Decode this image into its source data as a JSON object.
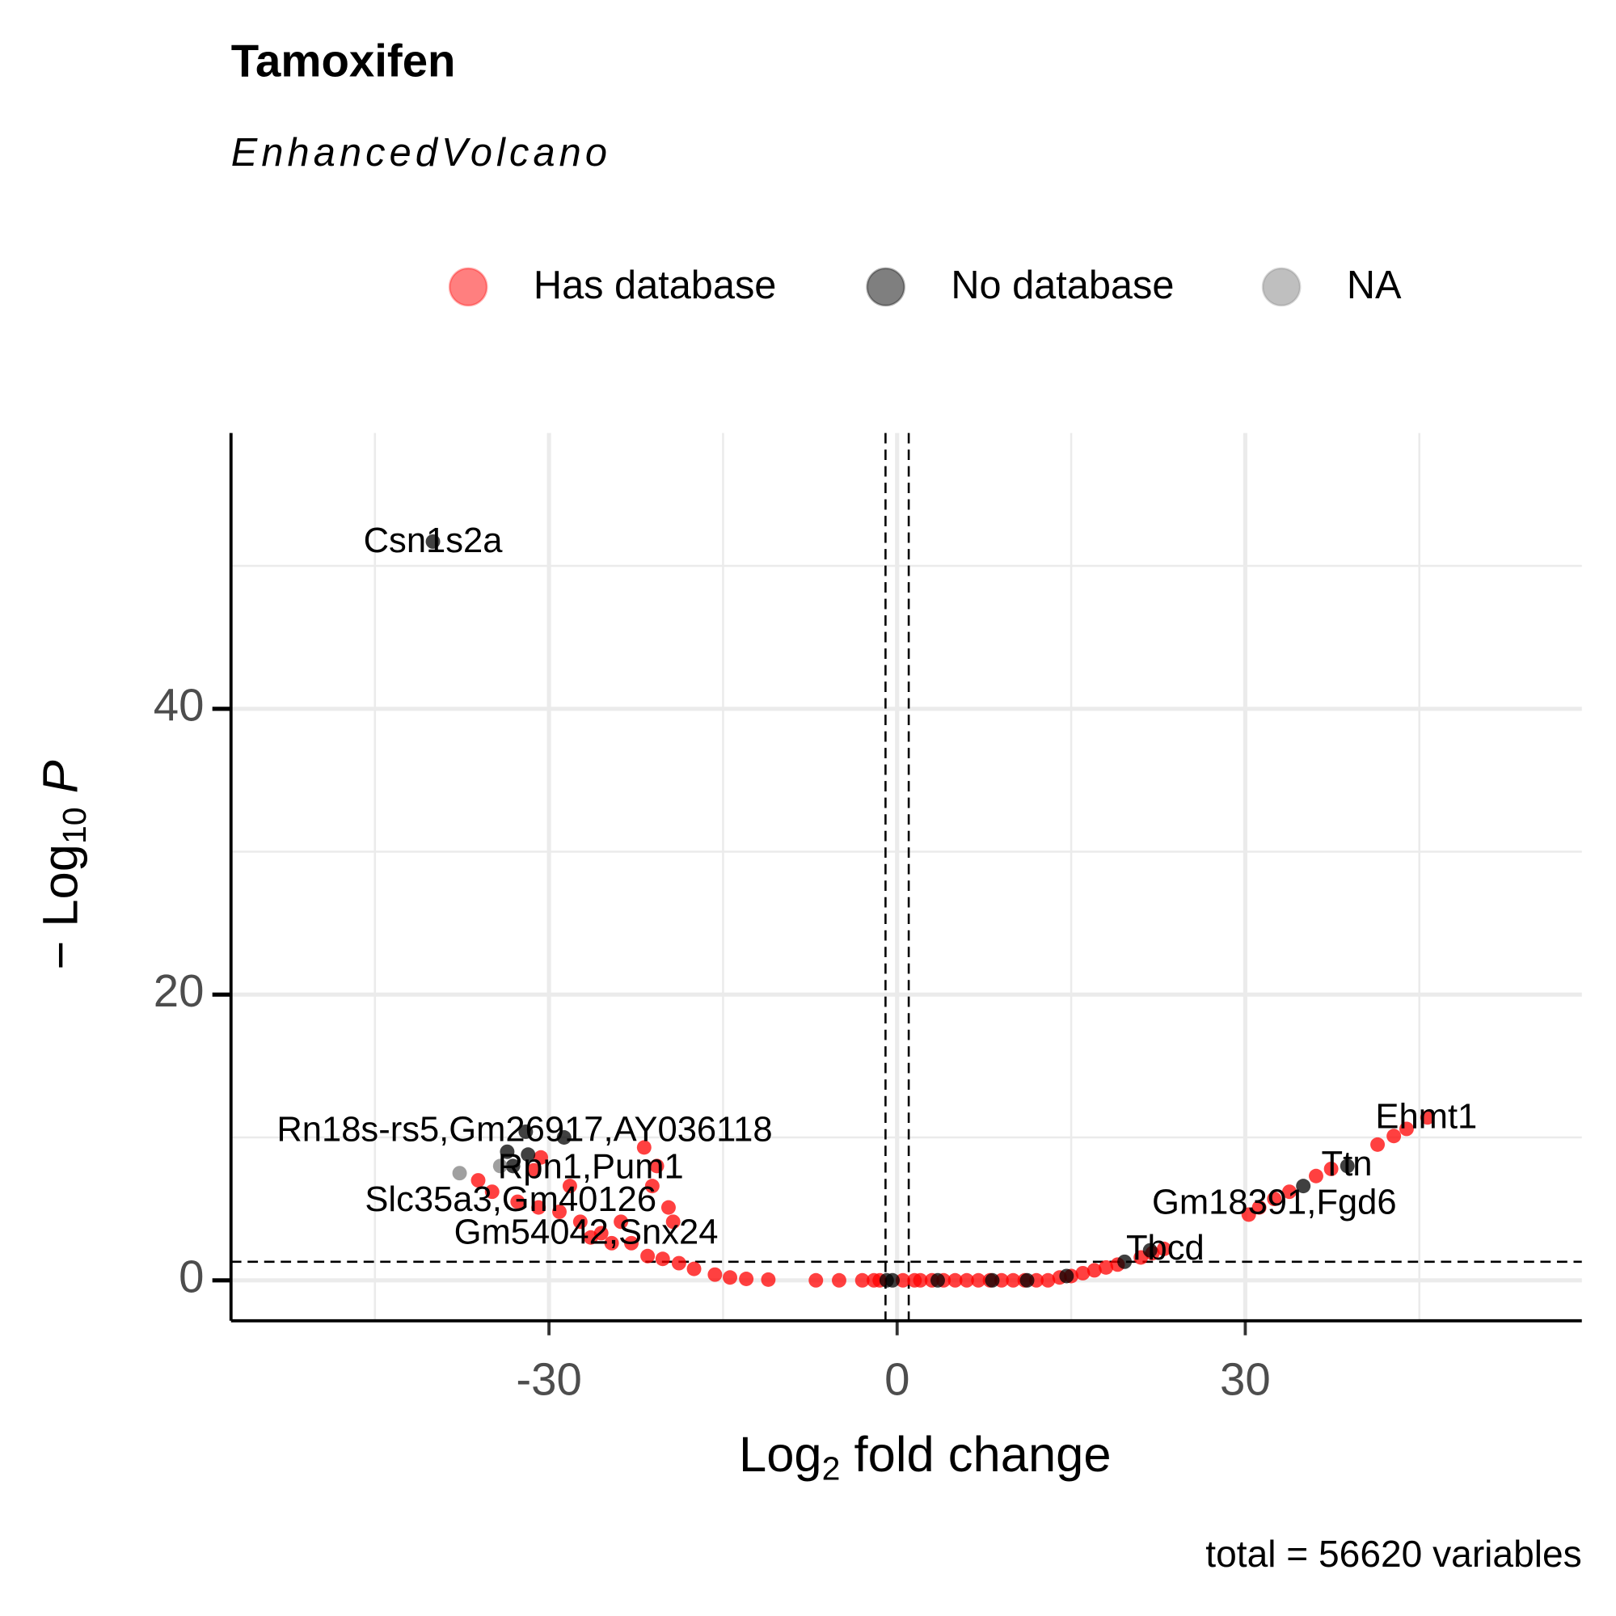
{
  "chart_data": {
    "type": "scatter",
    "title": "Tamoxifen",
    "subtitle": "EnhancedVolcano",
    "caption": "total = 56620 variables",
    "xlabel": [
      "Log",
      "2",
      " fold change"
    ],
    "ylabel": [
      "− Log",
      "10",
      " P"
    ],
    "xlim": [
      -57.4,
      59.0
    ],
    "ylim": [
      -2.83,
      59.3
    ],
    "xticks": [
      -30,
      0,
      30
    ],
    "yticks": [
      0,
      20,
      40
    ],
    "x_minor_grid": [
      -45,
      -15,
      15,
      45
    ],
    "y_minor_grid": [
      10,
      30,
      50
    ],
    "grid": true,
    "vlines": [
      -1,
      1
    ],
    "hline": 1.3,
    "legend": "top",
    "series": [
      {
        "name": "Has database",
        "color": "#ff0000",
        "x": [
          -21.8,
          -20.7,
          -30.7,
          -28.2,
          -36.1,
          -34.9,
          -32.7,
          -30.9,
          -29.1,
          -27.3,
          -25.5,
          -23.8,
          -22.9,
          -21.1,
          -19.7,
          -19.3,
          -21.5,
          -20.2,
          -18.8,
          -17.5,
          -15.7,
          -14.4,
          -13.0,
          -11.1,
          -31.3,
          -24.6,
          -26.4,
          -7,
          -5,
          -3,
          -2,
          -1.5,
          0.5,
          1.5,
          2,
          3,
          4,
          5,
          6,
          7,
          8,
          9,
          10,
          11,
          12,
          13,
          14,
          15,
          16,
          17,
          18,
          19,
          21,
          22,
          23,
          30.3,
          31.2,
          32.5,
          33.8,
          36.1,
          37.4,
          41.4,
          42.8,
          43.9,
          45.7
        ],
        "y": [
          9.3,
          8.0,
          8.6,
          6.6,
          7.0,
          6.2,
          5.5,
          5.1,
          4.8,
          4.1,
          3.3,
          4.1,
          2.6,
          6.6,
          5.1,
          4.1,
          1.7,
          1.5,
          1.2,
          0.8,
          0.4,
          0.2,
          0.1,
          0.05,
          7.7,
          2.6,
          3.0,
          0,
          0,
          0,
          0,
          0,
          0,
          0,
          0,
          0,
          0,
          0,
          0,
          0,
          0,
          0,
          0,
          0,
          0,
          0,
          0.2,
          0.3,
          0.5,
          0.7,
          0.9,
          1.1,
          1.6,
          1.9,
          2.2,
          4.6,
          5.1,
          5.7,
          6.2,
          7.3,
          7.8,
          9.5,
          10.1,
          10.6,
          11.4
        ]
      },
      {
        "name": "No database",
        "color": "#000000",
        "x": [
          -40.0,
          -32.0,
          -28.7,
          -33.6,
          -31.8,
          -33.1,
          -0.9,
          -0.4,
          3.5,
          8.2,
          11.2,
          14.6,
          19.6,
          21.8,
          35.0,
          38.8
        ],
        "y": [
          51.7,
          10.4,
          10.0,
          9.0,
          8.8,
          8.0,
          0,
          0,
          0,
          0,
          0,
          0.3,
          1.3,
          2.1,
          6.6,
          8.0
        ]
      },
      {
        "name": "NA",
        "color": "#808080",
        "x": [
          -37.7,
          -34.2
        ],
        "y": [
          7.5,
          8.0
        ]
      }
    ],
    "labels": [
      {
        "text": "Csn1s2a",
        "x": -40.0,
        "y": 51.6
      },
      {
        "text": "Rn18s-rs5,Gm26917,AY036118",
        "x": -32.1,
        "y": 10.4
      },
      {
        "text": "Rpn1,Pum1",
        "x": -26.4,
        "y": 7.8
      },
      {
        "text": "Slc35a3,Gm40126",
        "x": -33.3,
        "y": 5.5
      },
      {
        "text": "Gm54042,Snx24",
        "x": -26.8,
        "y": 3.2
      },
      {
        "text": "Ehmt1",
        "x": 45.6,
        "y": 11.3
      },
      {
        "text": "Ttn",
        "x": 38.75,
        "y": 8.0
      },
      {
        "text": "Gm18391,Fgd6",
        "x": 32.5,
        "y": 5.3
      },
      {
        "text": "Tbcd",
        "x": 23.1,
        "y": 2.1
      }
    ]
  }
}
